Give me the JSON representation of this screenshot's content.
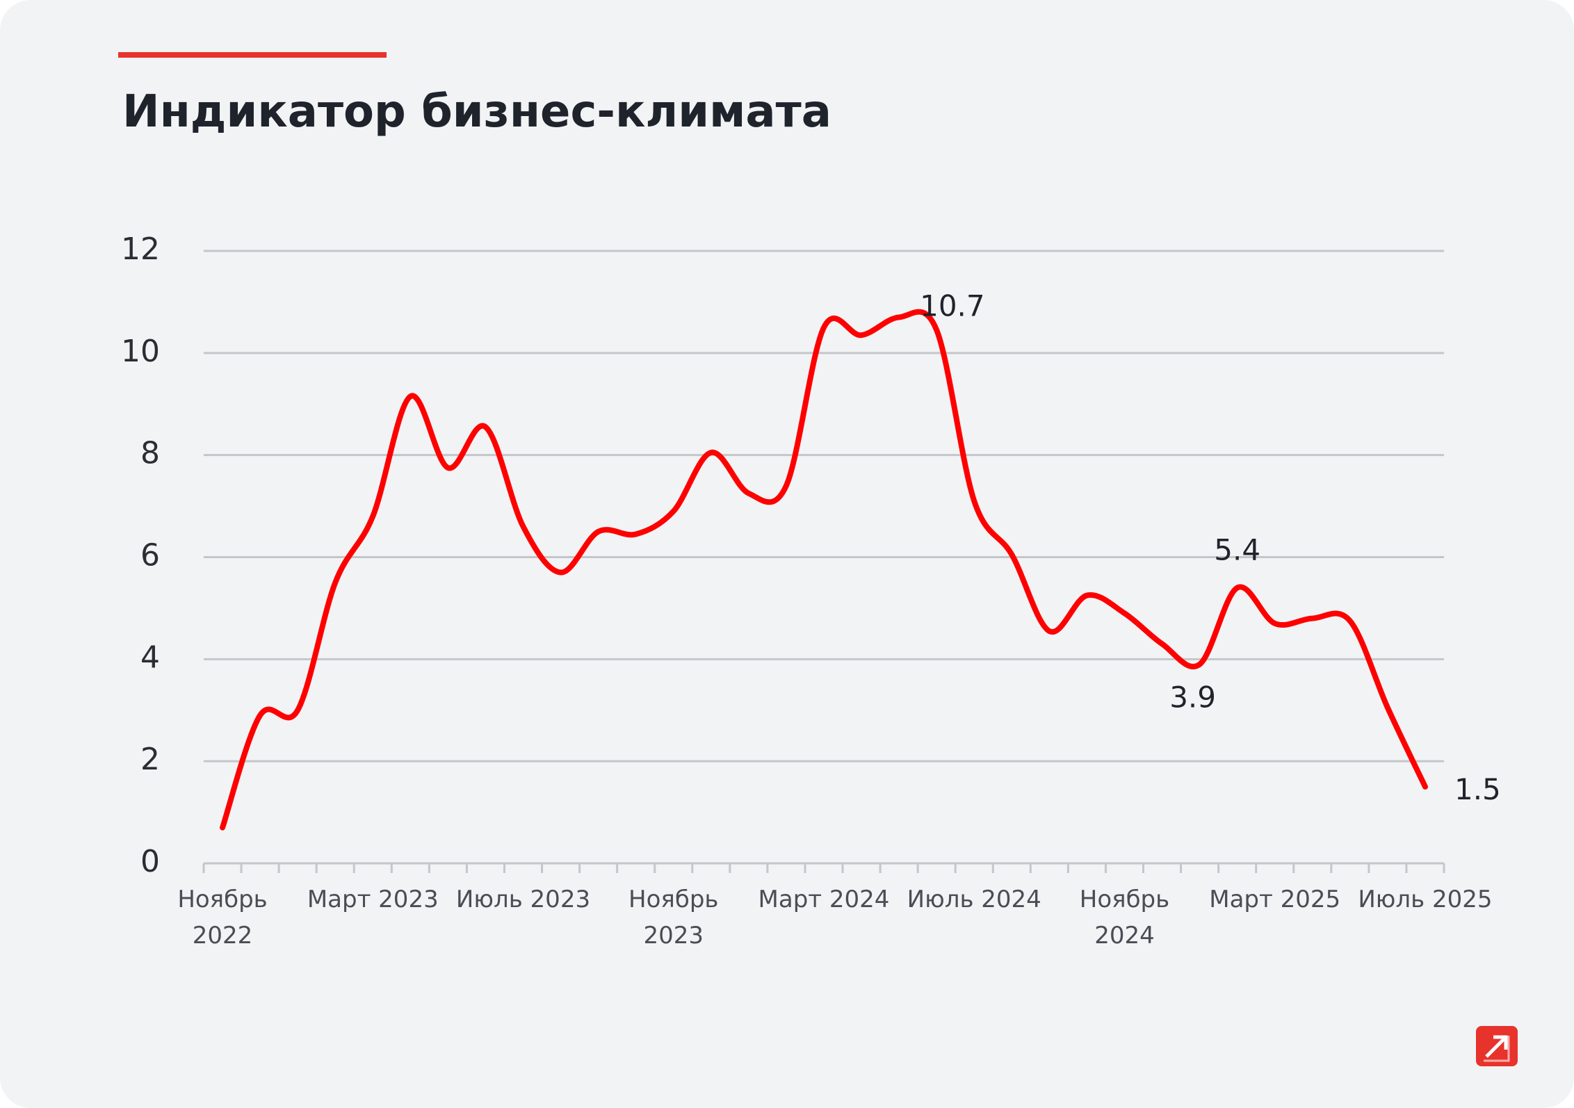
{
  "chart_data": {
    "type": "line",
    "title": "Индикатор бизнес-климата",
    "categories": [
      "Ноябрь 2022",
      null,
      null,
      null,
      "Март 2023",
      null,
      null,
      null,
      "Июль 2023",
      null,
      null,
      null,
      "Ноябрь 2023",
      null,
      null,
      null,
      "Март 2024",
      null,
      null,
      null,
      "Июль 2024",
      null,
      null,
      null,
      "Ноябрь 2024",
      null,
      null,
      null,
      "Март 2025",
      null,
      null,
      null,
      "Июль 2025"
    ],
    "series": [
      {
        "color": "#ff0000",
        "values": [
          0.7,
          2.9,
          3.0,
          5.5,
          6.8,
          9.15,
          7.75,
          8.55,
          6.6,
          5.7,
          6.5,
          6.45,
          6.9,
          8.05,
          7.25,
          7.4,
          10.5,
          10.35,
          10.7,
          10.45,
          7.1,
          6.05,
          4.55,
          5.25,
          4.9,
          4.3,
          3.9,
          5.4,
          4.7,
          4.8,
          4.75,
          3.05,
          1.5
        ],
        "value_labels": [
          null,
          null,
          null,
          null,
          null,
          null,
          null,
          null,
          null,
          null,
          null,
          null,
          null,
          null,
          null,
          null,
          null,
          null,
          "10.7",
          null,
          null,
          null,
          null,
          null,
          null,
          null,
          "3.9",
          "5.4",
          null,
          null,
          null,
          null,
          "1.5"
        ]
      }
    ],
    "ylim": [
      0,
      12
    ],
    "yticks": [
      0,
      2,
      4,
      6,
      8,
      10,
      12
    ],
    "grid": true
  }
}
